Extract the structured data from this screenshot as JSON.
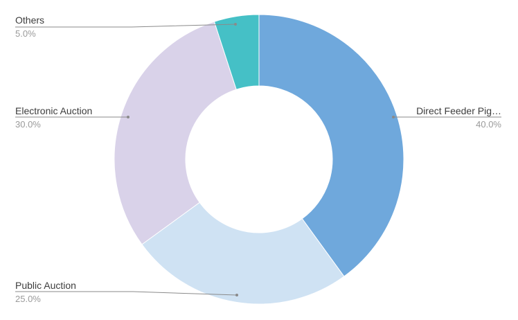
{
  "chart_data": {
    "type": "pie",
    "donut": true,
    "slices": [
      {
        "name": "Direct Feeder Pig…",
        "value": 40.0,
        "label": "40.0%",
        "color": "#6fa8dc"
      },
      {
        "name": "Public Auction",
        "value": 25.0,
        "label": "25.0%",
        "color": "#cfe2f3"
      },
      {
        "name": "Electronic Auction",
        "value": 30.0,
        "label": "30.0%",
        "color": "#d9d2e9"
      },
      {
        "name": "Others",
        "value": 5.0,
        "label": "5.0%",
        "color": "#45c0c6"
      }
    ],
    "label_position": "outside-with-leader-lines",
    "legend": "none"
  }
}
